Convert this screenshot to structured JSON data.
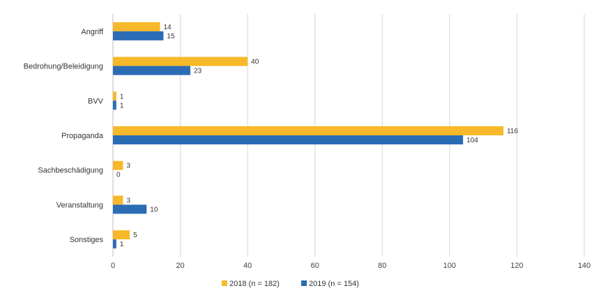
{
  "chart_data": {
    "type": "bar",
    "orientation": "horizontal",
    "title": "",
    "categories": [
      "Angriff",
      "Bedrohung/Beleidigung",
      "BVV",
      "Propaganda",
      "Sachbeschädigung",
      "Veranstaltung",
      "Sonstiges"
    ],
    "series": [
      {
        "name": "2018 (n = 182)",
        "color": "#f7b829",
        "values": [
          14,
          40,
          1,
          116,
          3,
          3,
          5
        ]
      },
      {
        "name": "2019 (n = 154)",
        "color": "#2b6cb5",
        "values": [
          15,
          23,
          1,
          104,
          0,
          10,
          1
        ]
      }
    ],
    "xlim": [
      0,
      140
    ],
    "xticks": [
      0,
      20,
      40,
      60,
      80,
      100,
      120,
      140
    ],
    "grid": true,
    "legend": "bottom-center",
    "xlabel": "",
    "ylabel": ""
  }
}
